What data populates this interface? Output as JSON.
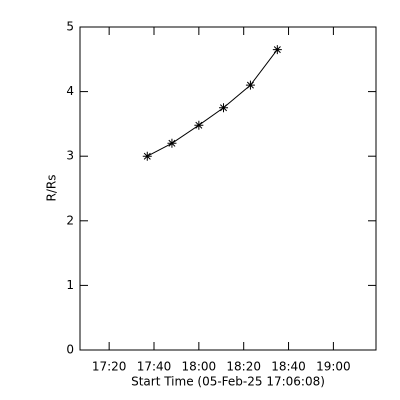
{
  "chart_data": {
    "type": "line",
    "x_label": "Start Time (05-Feb-25 17:06:08)",
    "y_label": "R/Rs",
    "x": [
      "17:37",
      "17:48",
      "18:00",
      "18:11",
      "18:23",
      "18:35"
    ],
    "values": [
      3.0,
      3.2,
      3.48,
      3.75,
      4.1,
      4.65
    ],
    "color": "#000000",
    "xlim": [
      "17:07",
      "19:19"
    ],
    "xticks": [
      "17:20",
      "17:40",
      "18:00",
      "18:20",
      "18:40",
      "19:00"
    ],
    "ylim": [
      0,
      5
    ],
    "yticks": [
      0,
      1,
      2,
      3,
      4,
      5
    ]
  }
}
